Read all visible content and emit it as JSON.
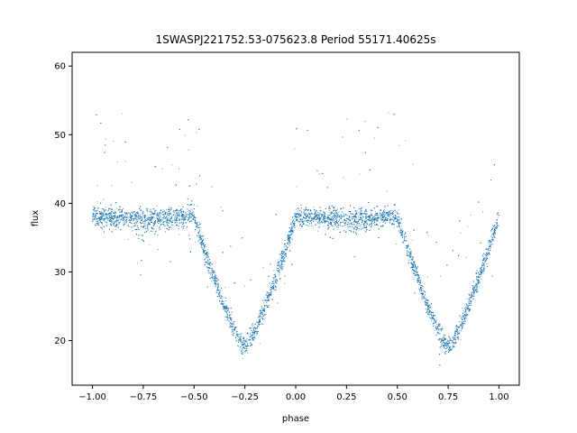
{
  "chart_data": {
    "type": "scatter",
    "title": "1SWASPJ221752.53-075623.8 Period 55171.40625s",
    "xlabel": "phase",
    "ylabel": "flux",
    "xlim": [
      -1.1,
      1.1
    ],
    "ylim": [
      13.5,
      62
    ],
    "xticks": [
      -1.0,
      -0.75,
      -0.5,
      -0.25,
      0.0,
      0.25,
      0.5,
      0.75,
      1.0
    ],
    "xtick_labels": [
      "−1.00",
      "−0.75",
      "−0.50",
      "−0.25",
      "0.00",
      "0.25",
      "0.50",
      "0.75",
      "1.00"
    ],
    "yticks": [
      20,
      30,
      40,
      50,
      60
    ],
    "ytick_labels": [
      "20",
      "30",
      "40",
      "50",
      "60"
    ],
    "grid": false,
    "legend": "none",
    "marker_color": "#1f77b4",
    "series": [
      {
        "description_points": "phase-folded light curve (repeated over two cycles)",
        "baseline_flux": 38,
        "primary_eclipse_phase": [
          -0.25,
          0.75
        ],
        "primary_eclipse_min_flux": 19,
        "primary_eclipse_half_width": 0.25,
        "secondary_dip_phase": [
          -0.75,
          0.25
        ],
        "secondary_dip_flux": 36.5,
        "phase_range": [
          -1.0,
          1.0
        ]
      }
    ]
  }
}
